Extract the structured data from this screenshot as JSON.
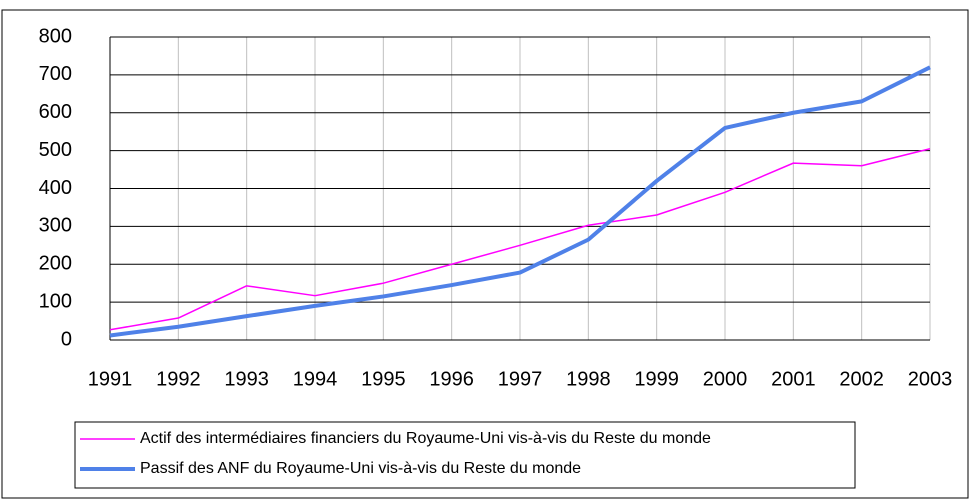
{
  "chart_data": {
    "type": "line",
    "categories": [
      "1991",
      "1992",
      "1993",
      "1994",
      "1995",
      "1996",
      "1997",
      "1998",
      "1999",
      "2000",
      "2001",
      "2002",
      "2003"
    ],
    "series": [
      {
        "name": "Actif des intermédiaires financiers du Royaume-Uni vis-à-vis du Reste du monde",
        "color": "#ff00ff",
        "width": 1.5,
        "values": [
          27,
          58,
          143,
          117,
          150,
          200,
          250,
          303,
          330,
          390,
          467,
          460,
          505
        ]
      },
      {
        "name": "Passif des ANF du Royaume-Uni vis-à-vis du Reste du monde",
        "color": "#4f81e8",
        "width": 4,
        "values": [
          12,
          35,
          63,
          90,
          115,
          145,
          178,
          265,
          420,
          560,
          600,
          630,
          720
        ]
      }
    ],
    "ylim": [
      0,
      800
    ],
    "yticks": [
      0,
      100,
      200,
      300,
      400,
      500,
      600,
      700,
      800
    ],
    "grid": true
  }
}
